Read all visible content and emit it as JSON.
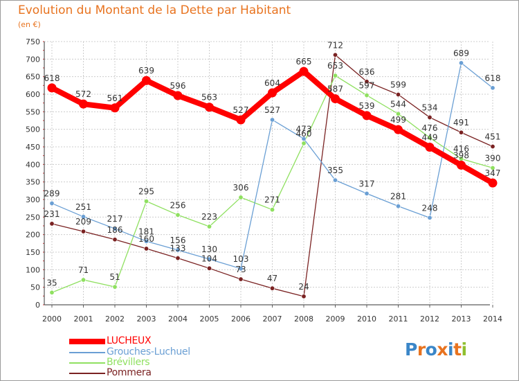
{
  "title": "Evolution du Montant de la Dette par Habitant",
  "unit": "(en €)",
  "logo": "Proxiti",
  "chart_data": {
    "type": "line",
    "categories": [
      "2000",
      "2001",
      "2002",
      "2003",
      "2004",
      "2005",
      "2006",
      "2007",
      "2008",
      "2009",
      "2010",
      "2011",
      "2012",
      "2013",
      "2014"
    ],
    "ylim": [
      0,
      750
    ],
    "yticks": [
      0,
      50,
      100,
      150,
      200,
      250,
      300,
      350,
      400,
      450,
      500,
      550,
      600,
      650,
      700,
      750
    ],
    "grid": true,
    "legend_position": "bottom-left",
    "series": [
      {
        "name": "LUCHEUX",
        "color": "#ff0000",
        "values": [
          618,
          572,
          561,
          639,
          596,
          563,
          527,
          604,
          665,
          587,
          539,
          499,
          449,
          398,
          347
        ]
      },
      {
        "name": "Grouches-Luchuel",
        "color": "#6a9fd4",
        "values": [
          289,
          251,
          217,
          181,
          156,
          130,
          103,
          527,
          473,
          355,
          317,
          281,
          248,
          689,
          618
        ]
      },
      {
        "name": "Brévillers",
        "color": "#8fe060",
        "values": [
          35,
          71,
          51,
          295,
          256,
          223,
          306,
          271,
          460,
          653,
          597,
          544,
          476,
          416,
          390
        ]
      },
      {
        "name": "Pommera",
        "color": "#7a2222",
        "values": [
          231,
          209,
          186,
          160,
          133,
          104,
          73,
          47,
          24,
          712,
          636,
          599,
          534,
          491,
          451
        ]
      }
    ]
  }
}
